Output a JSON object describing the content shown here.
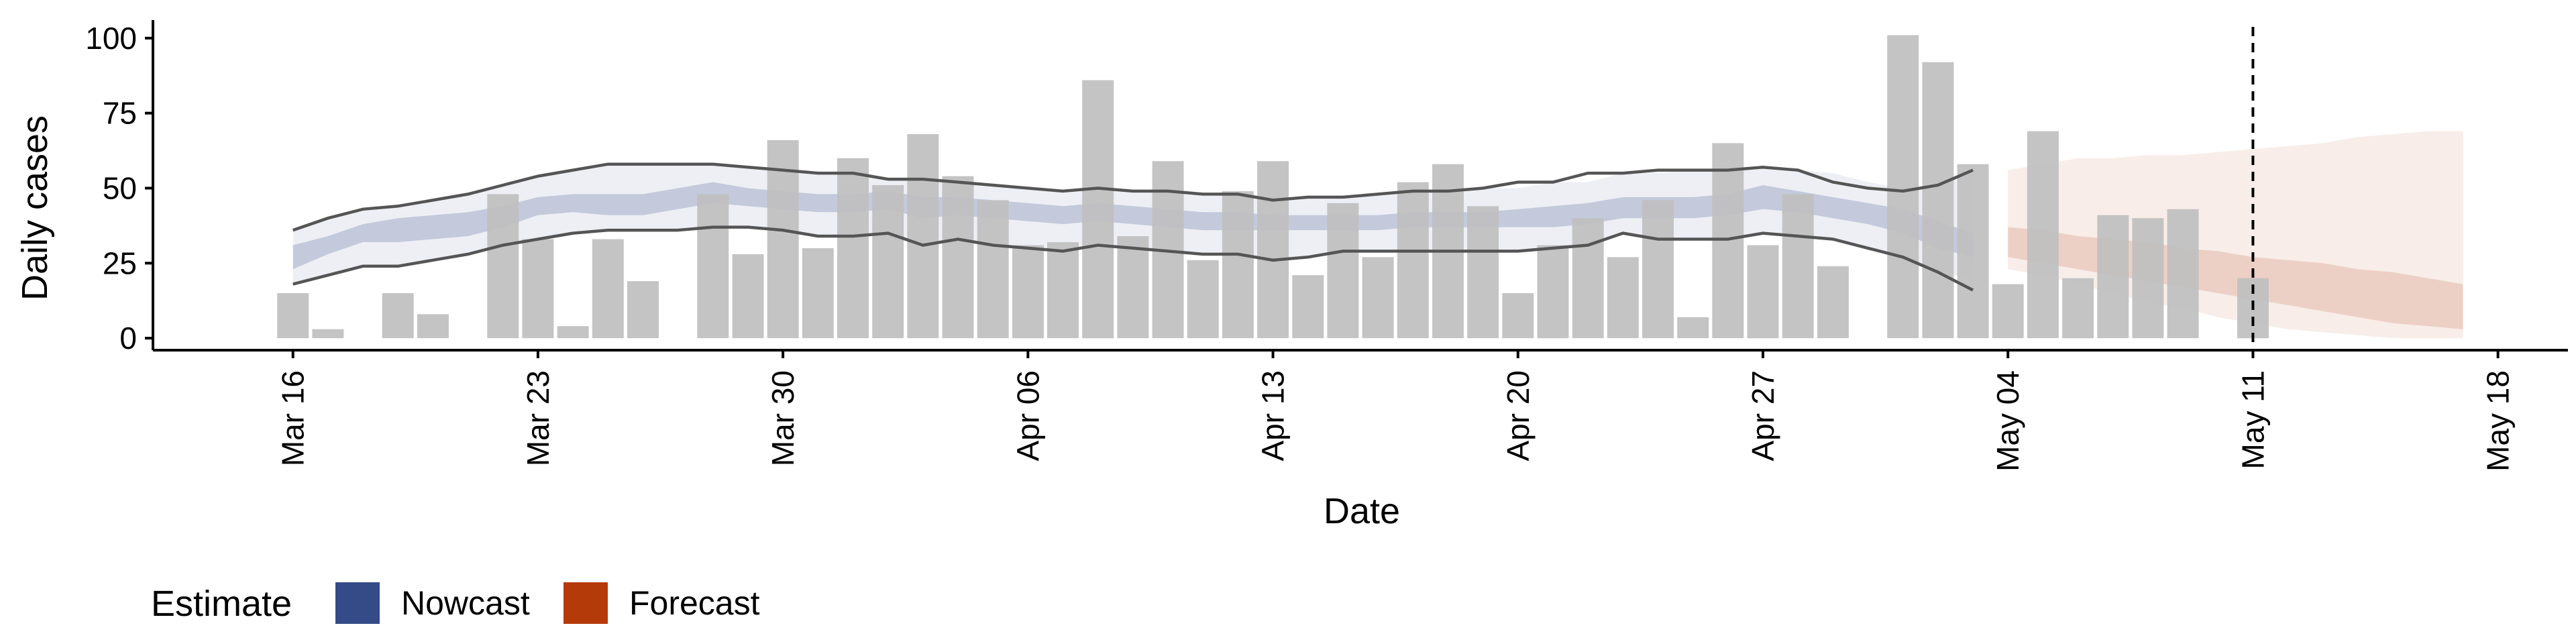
{
  "chart_data": {
    "type": "bar",
    "xlabel": "Date",
    "ylabel": "Daily cases",
    "ylim": [
      -4,
      106
    ],
    "xlim": [
      "2020-03-12",
      "2020-05-20"
    ],
    "yticks": [
      0,
      25,
      50,
      75,
      100
    ],
    "xticks": [
      {
        "date": "2020-03-16",
        "label": "Mar 16"
      },
      {
        "date": "2020-03-23",
        "label": "Mar 23"
      },
      {
        "date": "2020-03-30",
        "label": "Mar 30"
      },
      {
        "date": "2020-04-06",
        "label": "Apr 06"
      },
      {
        "date": "2020-04-13",
        "label": "Apr 13"
      },
      {
        "date": "2020-04-20",
        "label": "Apr 20"
      },
      {
        "date": "2020-04-27",
        "label": "Apr 27"
      },
      {
        "date": "2020-05-04",
        "label": "May 04"
      },
      {
        "date": "2020-05-11",
        "label": "May 11"
      },
      {
        "date": "2020-05-18",
        "label": "May 18"
      }
    ],
    "grid": false,
    "legend_placement": "bottom-left",
    "legend": {
      "title": "Estimate",
      "entries": [
        {
          "label": "Nowcast",
          "color": "#344b87"
        },
        {
          "label": "Forecast",
          "color": "#b53a0a"
        }
      ]
    },
    "colors": {
      "bar": "#bfbfbf",
      "nowcast": "#344b87",
      "forecast": "#b53a0a",
      "interval_line": "#555555"
    },
    "observed_cases": {
      "x": [
        "2020-03-16",
        "2020-03-17",
        "2020-03-18",
        "2020-03-19",
        "2020-03-20",
        "2020-03-21",
        "2020-03-22",
        "2020-03-23",
        "2020-03-24",
        "2020-03-25",
        "2020-03-26",
        "2020-03-27",
        "2020-03-28",
        "2020-03-29",
        "2020-03-30",
        "2020-03-31",
        "2020-04-01",
        "2020-04-02",
        "2020-04-03",
        "2020-04-04",
        "2020-04-05",
        "2020-04-06",
        "2020-04-07",
        "2020-04-08",
        "2020-04-09",
        "2020-04-10",
        "2020-04-11",
        "2020-04-12",
        "2020-04-13",
        "2020-04-14",
        "2020-04-15",
        "2020-04-16",
        "2020-04-17",
        "2020-04-18",
        "2020-04-19",
        "2020-04-20",
        "2020-04-21",
        "2020-04-22",
        "2020-04-23",
        "2020-04-24",
        "2020-04-25",
        "2020-04-26",
        "2020-04-27",
        "2020-04-28",
        "2020-04-29",
        "2020-04-30",
        "2020-05-01",
        "2020-05-02",
        "2020-05-03",
        "2020-05-04",
        "2020-05-05",
        "2020-05-06",
        "2020-05-07",
        "2020-05-08",
        "2020-05-09",
        "2020-05-10",
        "2020-05-11"
      ],
      "values": [
        15,
        3,
        0,
        15,
        8,
        0,
        48,
        33,
        4,
        33,
        19,
        0,
        48,
        28,
        66,
        30,
        60,
        51,
        68,
        54,
        46,
        31,
        32,
        86,
        34,
        59,
        26,
        49,
        59,
        21,
        45,
        27,
        52,
        58,
        44,
        15,
        31,
        40,
        27,
        46,
        7,
        65,
        31,
        48,
        24,
        0,
        101,
        92,
        58,
        18,
        69,
        20,
        41,
        40,
        43,
        0,
        20
      ]
    },
    "nowcast": {
      "x": [
        "2020-03-16",
        "2020-03-17",
        "2020-03-18",
        "2020-03-19",
        "2020-03-20",
        "2020-03-21",
        "2020-03-22",
        "2020-03-23",
        "2020-03-24",
        "2020-03-25",
        "2020-03-26",
        "2020-03-27",
        "2020-03-28",
        "2020-03-29",
        "2020-03-30",
        "2020-03-31",
        "2020-04-01",
        "2020-04-02",
        "2020-04-03",
        "2020-04-04",
        "2020-04-05",
        "2020-04-06",
        "2020-04-07",
        "2020-04-08",
        "2020-04-09",
        "2020-04-10",
        "2020-04-11",
        "2020-04-12",
        "2020-04-13",
        "2020-04-14",
        "2020-04-15",
        "2020-04-16",
        "2020-04-17",
        "2020-04-18",
        "2020-04-19",
        "2020-04-20",
        "2020-04-21",
        "2020-04-22",
        "2020-04-23",
        "2020-04-24",
        "2020-04-25",
        "2020-04-26",
        "2020-04-27",
        "2020-04-28",
        "2020-04-29",
        "2020-04-30",
        "2020-05-01",
        "2020-05-02",
        "2020-05-03"
      ],
      "lower_90": [
        18,
        21,
        24,
        24,
        26,
        28,
        31,
        33,
        35,
        36,
        36,
        36,
        37,
        37,
        36,
        34,
        34,
        35,
        31,
        33,
        31,
        30,
        29,
        31,
        30,
        29,
        28,
        28,
        26,
        27,
        29,
        29,
        29,
        29,
        29,
        29,
        30,
        31,
        35,
        33,
        33,
        33,
        35,
        34,
        33,
        30,
        27,
        22,
        20
      ],
      "lower_50": [
        23,
        28,
        32,
        32,
        33,
        34,
        37,
        41,
        42,
        41,
        41,
        43,
        45,
        44,
        43,
        42,
        42,
        43,
        40,
        41,
        40,
        39,
        38,
        39,
        38,
        37,
        36,
        36,
        36,
        36,
        36,
        36,
        37,
        37,
        37,
        37,
        37,
        38,
        40,
        40,
        40,
        41,
        43,
        42,
        40,
        38,
        35,
        30,
        27
      ],
      "upper_50": [
        31,
        34,
        38,
        40,
        41,
        42,
        44,
        47,
        48,
        48,
        48,
        50,
        52,
        50,
        49,
        48,
        48,
        49,
        47,
        47,
        46,
        45,
        44,
        45,
        44,
        43,
        42,
        42,
        41,
        41,
        41,
        41,
        42,
        42,
        42,
        43,
        44,
        45,
        47,
        47,
        47,
        48,
        51,
        49,
        47,
        45,
        43,
        39,
        35
      ],
      "upper_90": [
        36,
        40,
        43,
        44,
        46,
        48,
        51,
        54,
        56,
        58,
        58,
        58,
        58,
        57,
        56,
        55,
        55,
        53,
        53,
        52,
        51,
        50,
        49,
        50,
        49,
        49,
        48,
        48,
        46,
        47,
        47,
        48,
        49,
        49,
        50,
        50,
        52,
        52,
        55,
        55,
        56,
        56,
        57,
        56,
        55,
        52,
        50,
        50,
        56
      ],
      "lower_line": [
        18,
        21,
        24,
        24,
        26,
        28,
        31,
        33,
        35,
        36,
        36,
        36,
        37,
        37,
        36,
        34,
        34,
        35,
        31,
        33,
        31,
        30,
        29,
        31,
        30,
        29,
        28,
        28,
        26,
        27,
        29,
        29,
        29,
        29,
        29,
        29,
        30,
        31,
        35,
        33,
        33,
        33,
        35,
        34,
        33,
        30,
        27,
        22,
        16
      ],
      "upper_line": [
        36,
        40,
        43,
        44,
        46,
        48,
        51,
        54,
        56,
        58,
        58,
        58,
        58,
        57,
        56,
        55,
        55,
        53,
        53,
        52,
        51,
        50,
        49,
        50,
        49,
        49,
        48,
        48,
        46,
        47,
        47,
        48,
        49,
        49,
        50,
        52,
        52,
        55,
        55,
        56,
        56,
        56,
        57,
        56,
        52,
        50,
        49,
        51,
        56
      ]
    },
    "forecast": {
      "x": [
        "2020-05-04",
        "2020-05-05",
        "2020-05-06",
        "2020-05-07",
        "2020-05-08",
        "2020-05-09",
        "2020-05-10",
        "2020-05-11",
        "2020-05-12",
        "2020-05-13",
        "2020-05-14",
        "2020-05-15",
        "2020-05-16",
        "2020-05-17"
      ],
      "lower_90": [
        23,
        21,
        18,
        15,
        12,
        10,
        7,
        5,
        3,
        2,
        1,
        0,
        0,
        0
      ],
      "lower_50": [
        27,
        25,
        23,
        21,
        19,
        17,
        15,
        13,
        11,
        9,
        7,
        5,
        4,
        3
      ],
      "upper_50": [
        37,
        36,
        34,
        33,
        32,
        30,
        29,
        27,
        26,
        25,
        23,
        22,
        20,
        18
      ],
      "upper_90": [
        56,
        58,
        60,
        60,
        61,
        61,
        62,
        63,
        64,
        65,
        67,
        68,
        69,
        69
      ]
    },
    "reference_line": {
      "date": "2020-05-11",
      "style": "dashed"
    }
  }
}
